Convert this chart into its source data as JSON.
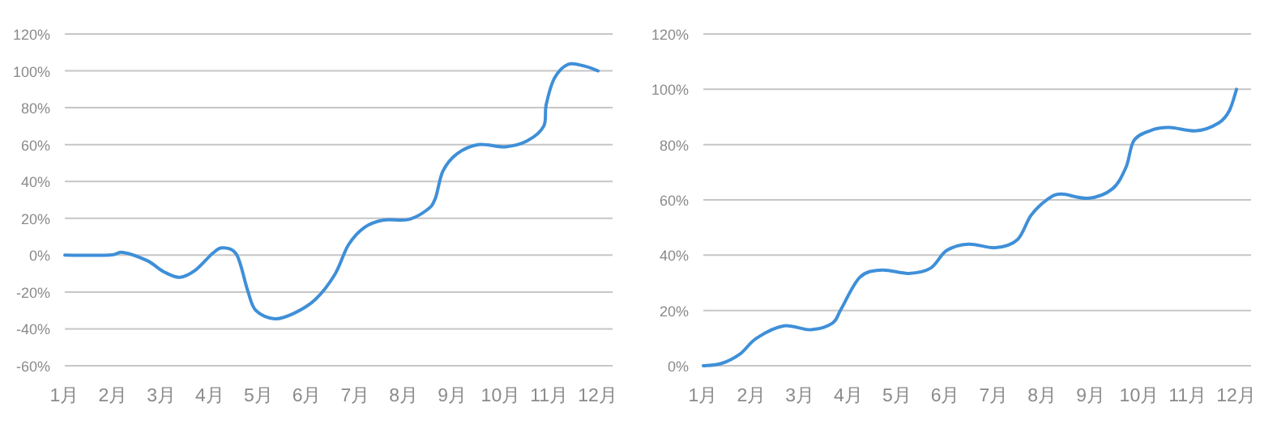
{
  "chart_data": [
    {
      "type": "line",
      "grid": "y",
      "x": [
        1,
        1.92,
        2.2,
        2.7,
        3.04,
        3.37,
        3.7,
        4.05,
        4.27,
        4.55,
        4.77,
        4.94,
        5.33,
        5.73,
        6.17,
        6.57,
        6.85,
        7.18,
        7.57,
        8.08,
        8.47,
        8.64,
        8.8,
        9.09,
        9.53,
        10.09,
        10.54,
        10.88,
        10.93,
        11.1,
        11.38,
        11.72,
        12
      ],
      "series": [
        {
          "color": "#3f8fd8",
          "values": [
            0,
            0,
            1.5,
            -3,
            -9,
            -12,
            -8,
            1,
            4,
            0,
            -19,
            -30,
            -34.5,
            -31.5,
            -24,
            -10.5,
            5.5,
            15,
            19,
            19.3,
            24.5,
            30.5,
            45.6,
            55,
            60,
            58.8,
            62,
            70,
            81.6,
            96,
            103.5,
            102.6,
            100
          ]
        }
      ],
      "xlim": [
        1,
        12.3
      ],
      "xticks": [
        {
          "value": 1,
          "label": "1月"
        },
        {
          "value": 2,
          "label": "2月"
        },
        {
          "value": 3,
          "label": "3月"
        },
        {
          "value": 4,
          "label": "4月"
        },
        {
          "value": 5,
          "label": "5月"
        },
        {
          "value": 6,
          "label": "6月"
        },
        {
          "value": 7,
          "label": "7月"
        },
        {
          "value": 8,
          "label": "8月"
        },
        {
          "value": 9,
          "label": "9月"
        },
        {
          "value": 10,
          "label": "10月"
        },
        {
          "value": 11,
          "label": "11月"
        },
        {
          "value": 12,
          "label": "12月"
        }
      ],
      "ylim": [
        -60,
        120
      ],
      "yticks": [
        {
          "value": -60,
          "label": "-60%"
        },
        {
          "value": -40,
          "label": "-40%"
        },
        {
          "value": -20,
          "label": "-20%"
        },
        {
          "value": 0,
          "label": "0%"
        },
        {
          "value": 20,
          "label": "20%"
        },
        {
          "value": 40,
          "label": "40%"
        },
        {
          "value": 60,
          "label": "60%"
        },
        {
          "value": 80,
          "label": "80%"
        },
        {
          "value": 100,
          "label": "100%"
        },
        {
          "value": 120,
          "label": "120%"
        }
      ]
    },
    {
      "type": "line",
      "grid": "y",
      "x": [
        1,
        1.37,
        1.76,
        2.1,
        2.66,
        3.22,
        3.67,
        3.84,
        4.23,
        4.68,
        5.24,
        5.69,
        6.02,
        6.47,
        7.03,
        7.48,
        7.76,
        8.1,
        8.38,
        8.94,
        9.44,
        9.72,
        9.89,
        10.28,
        10.62,
        11.18,
        11.63,
        11.85,
        12
      ],
      "series": [
        {
          "color": "#3f8fd8",
          "values": [
            0,
            0.8,
            4.3,
            10,
            14.4,
            13,
            15.5,
            20.4,
            32,
            34.6,
            33.4,
            35.3,
            41.7,
            44,
            42.7,
            45.6,
            54.4,
            60.2,
            62.1,
            60.6,
            64,
            71.8,
            81.6,
            85.4,
            86.2,
            85,
            87.8,
            92.2,
            100
          ]
        }
      ],
      "xlim": [
        1,
        12.3
      ],
      "xticks": [
        {
          "value": 1,
          "label": "1月"
        },
        {
          "value": 2,
          "label": "2月"
        },
        {
          "value": 3,
          "label": "3月"
        },
        {
          "value": 4,
          "label": "4月"
        },
        {
          "value": 5,
          "label": "5月"
        },
        {
          "value": 6,
          "label": "6月"
        },
        {
          "value": 7,
          "label": "7月"
        },
        {
          "value": 8,
          "label": "8月"
        },
        {
          "value": 9,
          "label": "9月"
        },
        {
          "value": 10,
          "label": "10月"
        },
        {
          "value": 11,
          "label": "11月"
        },
        {
          "value": 12,
          "label": "12月"
        }
      ],
      "ylim": [
        0,
        120
      ],
      "yticks": [
        {
          "value": 0,
          "label": "0%"
        },
        {
          "value": 20,
          "label": "20%"
        },
        {
          "value": 40,
          "label": "40%"
        },
        {
          "value": 60,
          "label": "60%"
        },
        {
          "value": 80,
          "label": "80%"
        },
        {
          "value": 100,
          "label": "100%"
        },
        {
          "value": 120,
          "label": "120%"
        }
      ]
    }
  ]
}
